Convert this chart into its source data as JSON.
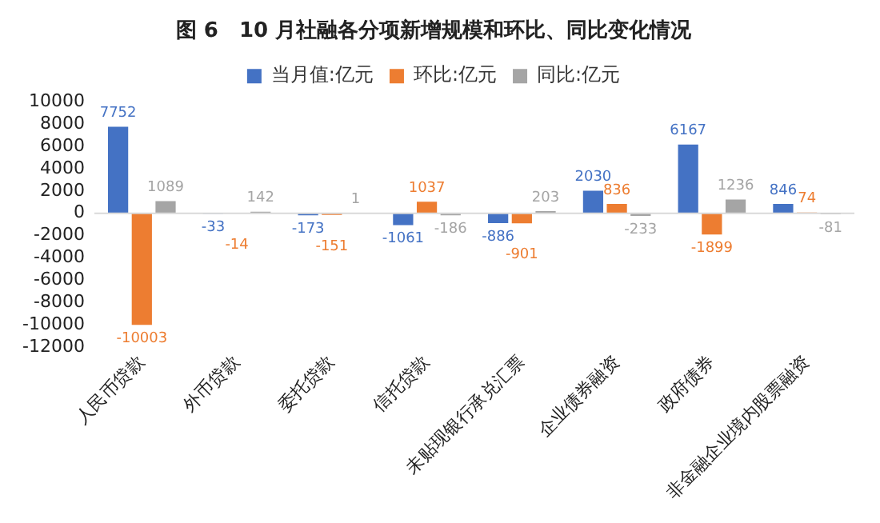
{
  "chart_data": {
    "type": "bar",
    "title": "图 6　10 月社融各分项新增规模和环比、同比变化情况",
    "categories": [
      "人民币贷款",
      "外币贷款",
      "委托贷款",
      "信托贷款",
      "未贴现银行承兑汇票",
      "企业债券融资",
      "政府债券",
      "非金融企业境内股票融资"
    ],
    "series": [
      {
        "name": "当月值:亿元",
        "color": "#4472c4",
        "values": [
          7752,
          -33,
          -173,
          -1061,
          -886,
          2030,
          6167,
          846
        ]
      },
      {
        "name": "环比:亿元",
        "color": "#ed7d31",
        "values": [
          -10003,
          -14,
          -151,
          1037,
          -901,
          836,
          -1899,
          74
        ]
      },
      {
        "name": "同比:亿元",
        "color": "#a5a5a5",
        "values": [
          1089,
          142,
          1,
          -186,
          203,
          -233,
          1236,
          -81
        ]
      }
    ],
    "ylim": [
      -12000,
      10000
    ],
    "yticks": [
      -12000,
      -10000,
      -8000,
      -6000,
      -4000,
      -2000,
      0,
      2000,
      4000,
      6000,
      8000,
      10000
    ],
    "ref_lines": [
      {
        "axis": "y",
        "value": 0,
        "color": "#d9d9d9"
      }
    ],
    "grid": false,
    "legend": "top",
    "data_labels": true
  }
}
